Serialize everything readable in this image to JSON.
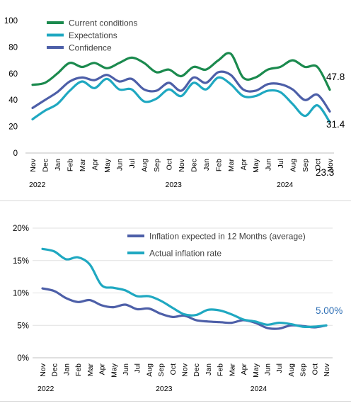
{
  "colors": {
    "current_conditions": "#1b8a4e",
    "expectations": "#1fa8c1",
    "confidence": "#4d5fa8",
    "inflation_expected": "#4d5fa8",
    "actual_inflation": "#1fa8c1",
    "axis_text": "#000000",
    "label_5pct": "#2e6fb5",
    "gridline": "#e0e0e0"
  },
  "chart_data": [
    {
      "type": "line",
      "title": "",
      "months": [
        "Nov",
        "Dec",
        "Jan",
        "Feb",
        "Mar",
        "Apr",
        "May",
        "Jun",
        "Jul",
        "Aug",
        "Sep",
        "Oct",
        "Nov",
        "Dec",
        "Jan",
        "Feb",
        "Mar",
        "Apr",
        "May",
        "Jun",
        "Jul",
        "Aug",
        "Sep",
        "Oct",
        "Nov"
      ],
      "years": [
        {
          "label": "2022",
          "at_index": 0
        },
        {
          "label": "2023",
          "at_index": 11
        },
        {
          "label": "2024",
          "at_index": 20
        }
      ],
      "ylim": [
        0,
        100
      ],
      "yticks": [
        0,
        20,
        40,
        60,
        80,
        100
      ],
      "ytick_labels": [
        "0",
        "20",
        "40",
        "60",
        "80",
        "100"
      ],
      "legend_position": "top-left",
      "series": [
        {
          "name": "Current conditions",
          "color_key": "current_conditions",
          "values": [
            51.5,
            53,
            60,
            68,
            65,
            68,
            64,
            68,
            72,
            68,
            61,
            63,
            58,
            65,
            63,
            70,
            75,
            57,
            57,
            63,
            65,
            70,
            65,
            65,
            47.8
          ],
          "end_label": "47.8"
        },
        {
          "name": "Expectations",
          "color_key": "expectations",
          "values": [
            25.5,
            32,
            37,
            47,
            54,
            49,
            56,
            48,
            48,
            39,
            41,
            48,
            43,
            53,
            48,
            57,
            52,
            43,
            43,
            47,
            46,
            37,
            28,
            36,
            23.3
          ],
          "end_label": "23.3"
        },
        {
          "name": "Confidence",
          "color_key": "confidence",
          "values": [
            34,
            40,
            46,
            54,
            57,
            55,
            59,
            54,
            56,
            48,
            47,
            53,
            47,
            57,
            53,
            61,
            59,
            48,
            47,
            52,
            52,
            48,
            40,
            44,
            31.4
          ],
          "end_label": "31.4"
        }
      ]
    },
    {
      "type": "line",
      "title": "",
      "months": [
        "Nov",
        "Dec",
        "Jan",
        "Feb",
        "Mar",
        "Apr",
        "May",
        "Jun",
        "Jul",
        "Aug",
        "Sep",
        "Oct",
        "Nov",
        "Dec",
        "Jan",
        "Feb",
        "Mar",
        "Apr",
        "May",
        "Jun",
        "Jul",
        "Aug",
        "Sep",
        "Oct",
        "Nov"
      ],
      "years": [
        {
          "label": "2022",
          "at_index": 0
        },
        {
          "label": "2023",
          "at_index": 10
        },
        {
          "label": "2024",
          "at_index": 18
        }
      ],
      "ylim": [
        0,
        20
      ],
      "yticks": [
        0,
        5,
        10,
        15,
        20
      ],
      "ytick_labels": [
        "0%",
        "5%",
        "10%",
        "15%",
        "20%"
      ],
      "legend_position": "top-right",
      "series": [
        {
          "name": "Inflation expected in 12 Months (average)",
          "color_key": "inflation_expected",
          "values": [
            10.7,
            10.3,
            9.2,
            8.6,
            8.9,
            8.1,
            7.8,
            8.2,
            7.5,
            7.6,
            6.8,
            6.3,
            6.5,
            5.8,
            5.6,
            5.5,
            5.4,
            5.8,
            5.4,
            4.6,
            4.5,
            5.0,
            4.9,
            4.7,
            5.0
          ],
          "end_label": "5.00%"
        },
        {
          "name": "Actual inflation rate",
          "color_key": "actual_inflation",
          "values": [
            16.8,
            16.4,
            15.2,
            15.5,
            14.4,
            11.2,
            10.8,
            10.4,
            9.5,
            9.5,
            8.8,
            7.7,
            6.7,
            6.6,
            7.4,
            7.3,
            6.7,
            5.9,
            5.6,
            5.1,
            5.4,
            5.2,
            4.8,
            4.8,
            5.0
          ]
        }
      ]
    }
  ]
}
